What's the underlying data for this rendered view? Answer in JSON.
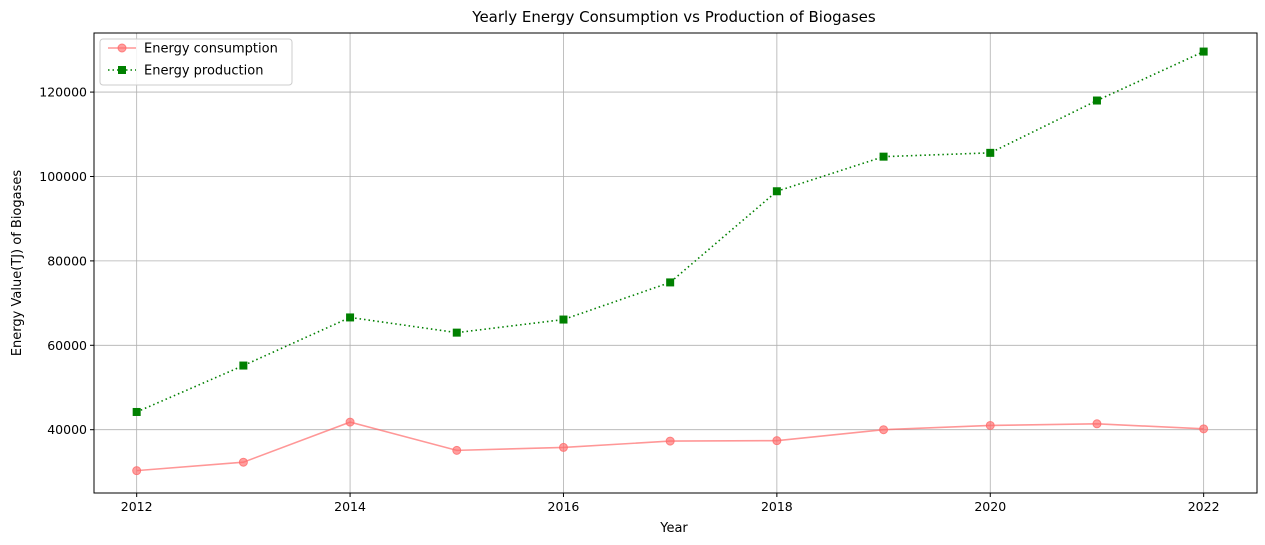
{
  "chart_data": {
    "type": "line",
    "title": "Yearly Energy Consumption vs Production of Biogases",
    "xlabel": "Year",
    "ylabel": "Energy Value(TJ) of Biogases",
    "x": [
      2012,
      2013,
      2014,
      2015,
      2016,
      2017,
      2018,
      2019,
      2020,
      2021,
      2022
    ],
    "xticks": [
      2012,
      2014,
      2016,
      2018,
      2020,
      2022
    ],
    "yticks": [
      40000,
      60000,
      80000,
      100000,
      120000
    ],
    "xlim": [
      2011.6,
      2022.5
    ],
    "ylim": [
      25000,
      134000
    ],
    "grid": true,
    "legend_position": "top-left",
    "series": [
      {
        "name": "Energy consumption",
        "color": "#ff6b6b",
        "line_style": "solid",
        "marker": "circle",
        "values": [
          30300,
          32300,
          41800,
          35100,
          35800,
          37300,
          37400,
          40000,
          41000,
          41400,
          40200
        ]
      },
      {
        "name": "Energy production",
        "color": "#008000",
        "line_style": "dotted",
        "marker": "square",
        "values": [
          44200,
          55200,
          66600,
          63000,
          66100,
          74900,
          96500,
          104700,
          105600,
          118000,
          129600
        ]
      }
    ]
  }
}
